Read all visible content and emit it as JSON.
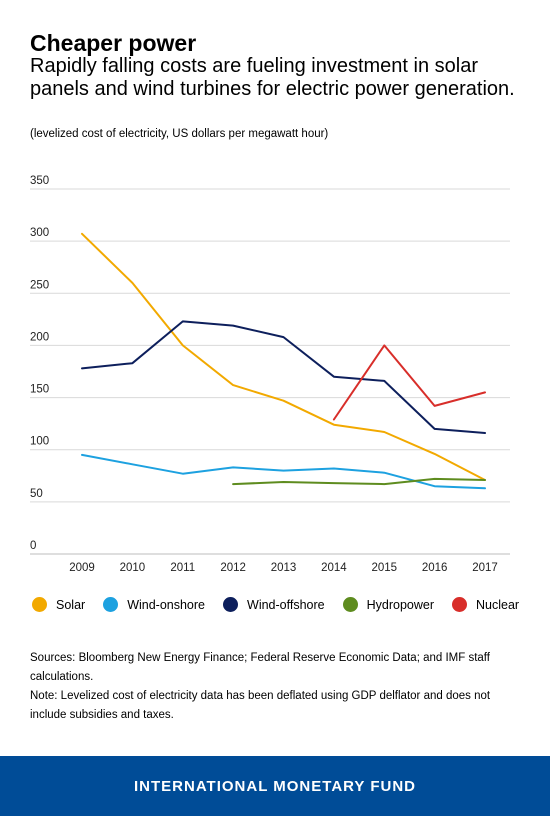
{
  "header": {
    "title": "Cheaper power",
    "subtitle": "Rapidly falling costs are fueling investment in solar panels and wind turbines for electric power generation.",
    "units": "(levelized cost of electricity, US dollars per megawatt hour)"
  },
  "chart_data": {
    "type": "line",
    "x": [
      2009,
      2010,
      2011,
      2012,
      2013,
      2014,
      2015,
      2016,
      2017
    ],
    "x_labels": [
      "2009",
      "2010",
      "2011",
      "2012",
      "2013",
      "2014",
      "2015",
      "2016",
      "2017"
    ],
    "ylim": [
      0,
      350
    ],
    "y_ticks": [
      0,
      50,
      100,
      150,
      200,
      250,
      300,
      350
    ],
    "y_tick_labels": [
      "0",
      "50",
      "100",
      "150",
      "200",
      "250",
      "300",
      "350"
    ],
    "grid": true,
    "legend_position": "bottom",
    "series": [
      {
        "name": "Solar",
        "color": "#f2a900",
        "values": [
          307,
          260,
          200,
          162,
          147,
          124,
          117,
          96,
          71
        ]
      },
      {
        "name": "Wind-onshore",
        "color": "#1da1e0",
        "values": [
          95,
          86,
          77,
          83,
          80,
          82,
          78,
          65,
          63
        ]
      },
      {
        "name": "Wind-offshore",
        "color": "#0d1f5c",
        "values": [
          178,
          183,
          223,
          219,
          208,
          170,
          166,
          120,
          116
        ]
      },
      {
        "name": "Hydropower",
        "color": "#5e8c1f",
        "values": [
          null,
          null,
          null,
          67,
          69,
          68,
          67,
          72,
          71
        ]
      },
      {
        "name": "Nuclear",
        "color": "#d82e2a",
        "values": [
          null,
          null,
          null,
          null,
          null,
          129,
          200,
          142,
          155
        ]
      }
    ]
  },
  "notes": {
    "sources": "Sources: Bloomberg New Energy Finance; Federal Reserve Economic Data; and IMF staff calculations.",
    "note": "Note: Levelized cost of electricity data has been deflated using GDP delflator and does not include subsidies and taxes."
  },
  "footer": {
    "org": "INTERNATIONAL MONETARY FUND",
    "background": "#004c97"
  }
}
